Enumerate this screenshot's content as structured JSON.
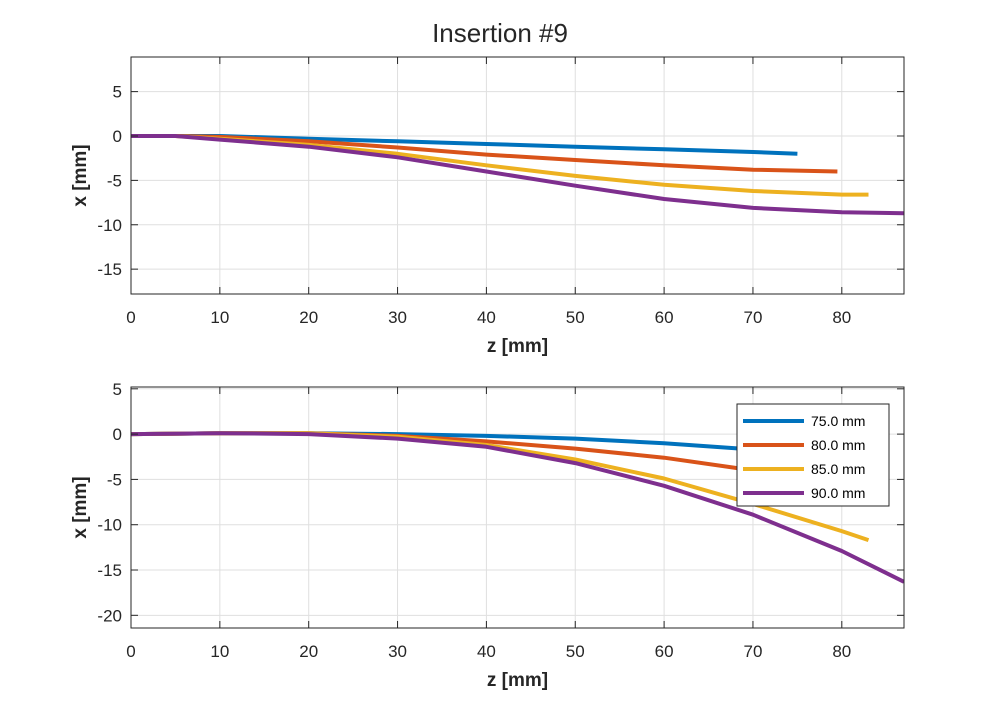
{
  "chart_data": {
    "title": "Insertion #9",
    "colors": [
      "#0072BD",
      "#D95319",
      "#EDB120",
      "#7E2F8E"
    ],
    "legend": {
      "location": "top-right",
      "entries": [
        "75.0 mm",
        "80.0 mm",
        "85.0 mm",
        "90.0 mm"
      ]
    },
    "subplots": [
      {
        "type": "line",
        "xlabel": "z [mm]",
        "ylabel": "x [mm]",
        "xlim": [
          0,
          87
        ],
        "ylim": [
          -17.8,
          8.9
        ],
        "xticks": [
          0,
          10,
          20,
          30,
          40,
          50,
          60,
          70,
          80
        ],
        "yticks": [
          5,
          0,
          -5,
          -10,
          -15
        ],
        "grid": true,
        "series": [
          {
            "x": [
              0,
              5,
              10,
              20,
              30,
              40,
              50,
              60,
              70,
              75
            ],
            "y": [
              0,
              0,
              0,
              -0.3,
              -0.6,
              -0.9,
              -1.2,
              -1.5,
              -1.8,
              -2.0
            ]
          },
          {
            "x": [
              0,
              5,
              10,
              20,
              30,
              40,
              50,
              60,
              70,
              79.5
            ],
            "y": [
              0,
              0,
              -0.1,
              -0.6,
              -1.3,
              -2.1,
              -2.7,
              -3.3,
              -3.8,
              -4.0
            ]
          },
          {
            "x": [
              0,
              5,
              10,
              20,
              30,
              40,
              50,
              60,
              70,
              80,
              83
            ],
            "y": [
              0,
              0,
              -0.3,
              -1.0,
              -2.0,
              -3.3,
              -4.5,
              -5.5,
              -6.2,
              -6.6,
              -6.6
            ]
          },
          {
            "x": [
              0,
              5,
              10,
              20,
              30,
              40,
              50,
              60,
              70,
              80,
              87
            ],
            "y": [
              0,
              0,
              -0.4,
              -1.2,
              -2.4,
              -4.0,
              -5.6,
              -7.1,
              -8.1,
              -8.6,
              -8.7
            ]
          }
        ]
      },
      {
        "type": "line",
        "xlabel": "z [mm]",
        "ylabel": "x [mm]",
        "xlim": [
          0,
          87
        ],
        "ylim": [
          -21.4,
          5.2
        ],
        "xticks": [
          0,
          10,
          20,
          30,
          40,
          50,
          60,
          70,
          80
        ],
        "yticks": [
          5,
          0,
          -5,
          -10,
          -15,
          -20
        ],
        "grid": true,
        "series": [
          {
            "x": [
              0,
              10,
              20,
              30,
              40,
              50,
              60,
              70,
              75
            ],
            "y": [
              0,
              0.1,
              0.1,
              0,
              -0.2,
              -0.5,
              -1.0,
              -1.7,
              -2.0
            ]
          },
          {
            "x": [
              0,
              10,
              20,
              30,
              40,
              50,
              60,
              70,
              79.5
            ],
            "y": [
              0,
              0.1,
              0.1,
              -0.2,
              -0.8,
              -1.6,
              -2.6,
              -4.0,
              -5.3
            ]
          },
          {
            "x": [
              0,
              10,
              20,
              30,
              40,
              50,
              60,
              70,
              80,
              83
            ],
            "y": [
              0,
              0.1,
              0.1,
              -0.3,
              -1.2,
              -2.8,
              -4.9,
              -7.7,
              -10.7,
              -11.7
            ]
          },
          {
            "x": [
              0,
              10,
              20,
              30,
              40,
              50,
              60,
              70,
              80,
              87
            ],
            "y": [
              0,
              0.1,
              0,
              -0.5,
              -1.4,
              -3.2,
              -5.7,
              -8.9,
              -12.9,
              -16.3
            ]
          }
        ]
      }
    ]
  }
}
